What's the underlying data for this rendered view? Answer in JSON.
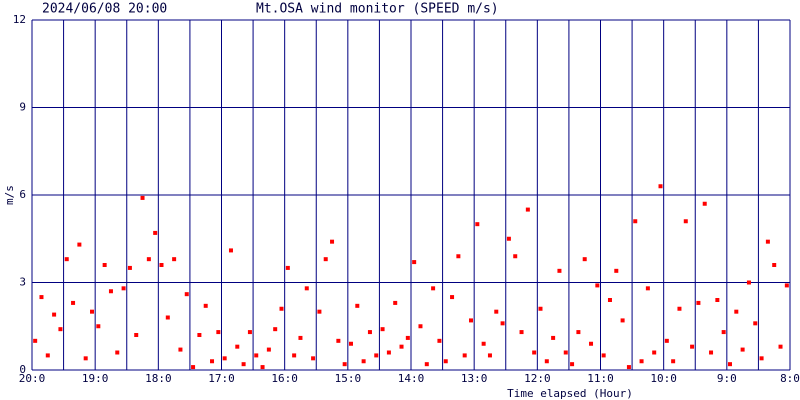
{
  "chart_data": {
    "type": "scatter",
    "timestamp": "2024/06/08 20:00",
    "title": "Mt.OSA wind monitor (SPEED m/s)",
    "ylabel": "m/s",
    "xlabel": "Time elapsed (Hour)",
    "color": "#ff0000",
    "grid_color": "#000080",
    "grid": true,
    "xlim": [
      0,
      12
    ],
    "ylim": [
      0,
      12
    ],
    "yticks": [
      0,
      3,
      6,
      9,
      12
    ],
    "xticks": [
      {
        "value": 0,
        "label": "20:0"
      },
      {
        "value": 1,
        "label": "19:0"
      },
      {
        "value": 2,
        "label": "18:0"
      },
      {
        "value": 3,
        "label": "17:0"
      },
      {
        "value": 4,
        "label": "16:0"
      },
      {
        "value": 5,
        "label": "15:0"
      },
      {
        "value": 6,
        "label": "14:0"
      },
      {
        "value": 7,
        "label": "13:0"
      },
      {
        "value": 8,
        "label": "12:0"
      },
      {
        "value": 9,
        "label": "11:0"
      },
      {
        "value": 10,
        "label": "10:0"
      },
      {
        "value": 11,
        "label": "9:0"
      },
      {
        "value": 12,
        "label": "8:0"
      }
    ],
    "xminor_ticks": [
      0.5,
      1.5,
      2.5,
      3.5,
      4.5,
      5.5,
      6.5,
      7.5,
      8.5,
      9.5,
      10.5,
      11.5
    ],
    "x": [
      0.05,
      0.15,
      0.25,
      0.35,
      0.45,
      0.55,
      0.65,
      0.75,
      0.85,
      0.95,
      1.05,
      1.15,
      1.25,
      1.35,
      1.45,
      1.55,
      1.65,
      1.75,
      1.85,
      1.95,
      2.05,
      2.15,
      2.25,
      2.35,
      2.45,
      2.55,
      2.65,
      2.75,
      2.85,
      2.95,
      3.05,
      3.15,
      3.25,
      3.35,
      3.45,
      3.55,
      3.65,
      3.75,
      3.85,
      3.95,
      4.05,
      4.15,
      4.25,
      4.35,
      4.45,
      4.55,
      4.65,
      4.75,
      4.85,
      4.95,
      5.05,
      5.15,
      5.25,
      5.35,
      5.45,
      5.55,
      5.65,
      5.75,
      5.85,
      5.95,
      6.05,
      6.15,
      6.25,
      6.35,
      6.45,
      6.55,
      6.65,
      6.75,
      6.85,
      6.95,
      7.05,
      7.15,
      7.25,
      7.35,
      7.45,
      7.55,
      7.65,
      7.75,
      7.85,
      7.95,
      8.05,
      8.15,
      8.25,
      8.35,
      8.45,
      8.55,
      8.65,
      8.75,
      8.85,
      8.95,
      9.05,
      9.15,
      9.25,
      9.35,
      9.45,
      9.55,
      9.65,
      9.75,
      9.85,
      9.95,
      10.05,
      10.15,
      10.25,
      10.35,
      10.45,
      10.55,
      10.65,
      10.75,
      10.85,
      10.95,
      11.05,
      11.15,
      11.25,
      11.35,
      11.45,
      11.55,
      11.65,
      11.75,
      11.85,
      11.95
    ],
    "values": [
      1.0,
      2.5,
      0.5,
      1.9,
      1.4,
      3.8,
      2.3,
      4.3,
      0.4,
      2.0,
      1.5,
      3.6,
      2.7,
      0.6,
      2.8,
      3.5,
      1.2,
      5.9,
      3.8,
      4.7,
      3.6,
      1.8,
      3.8,
      0.7,
      2.6,
      0.1,
      1.2,
      2.2,
      0.3,
      1.3,
      0.4,
      4.1,
      0.8,
      0.2,
      1.3,
      0.5,
      0.1,
      0.7,
      1.4,
      2.1,
      3.5,
      0.5,
      1.1,
      2.8,
      0.4,
      2.0,
      3.8,
      4.4,
      1.0,
      0.2,
      0.9,
      2.2,
      0.3,
      1.3,
      0.5,
      1.4,
      0.6,
      2.3,
      0.8,
      1.1,
      3.7,
      1.5,
      0.2,
      2.8,
      1.0,
      0.3,
      2.5,
      3.9,
      0.5,
      1.7,
      5.0,
      0.9,
      0.5,
      2.0,
      1.6,
      4.5,
      3.9,
      1.3,
      5.5,
      0.6,
      2.1,
      0.3,
      1.1,
      3.4,
      0.6,
      0.2,
      1.3,
      3.8,
      0.9,
      2.9,
      0.5,
      2.4,
      3.4,
      1.7,
      0.1,
      5.1,
      0.3,
      2.8,
      0.6,
      6.3,
      1.0,
      0.3,
      2.1,
      5.1,
      0.8,
      2.3,
      5.7,
      0.6,
      2.4,
      1.3,
      0.2,
      2.0,
      0.7,
      3.0,
      1.6,
      0.4,
      4.4,
      3.6,
      0.8,
      2.9
    ]
  }
}
